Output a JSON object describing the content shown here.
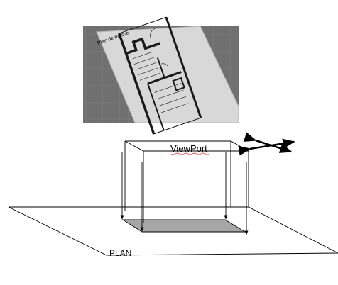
{
  "thumbnail": {
    "caption": "Plan de masse"
  },
  "viewport": {
    "label": "ViewPort"
  },
  "plan": {
    "label": "PLAN"
  },
  "colors": {
    "projection_fill": "#a6a6a6",
    "thumbnail_bg": "#707070",
    "sheet": "#d8d8d8",
    "walls": "#1a1a1a"
  },
  "icons": {
    "pan": "move-arrows-icon"
  }
}
